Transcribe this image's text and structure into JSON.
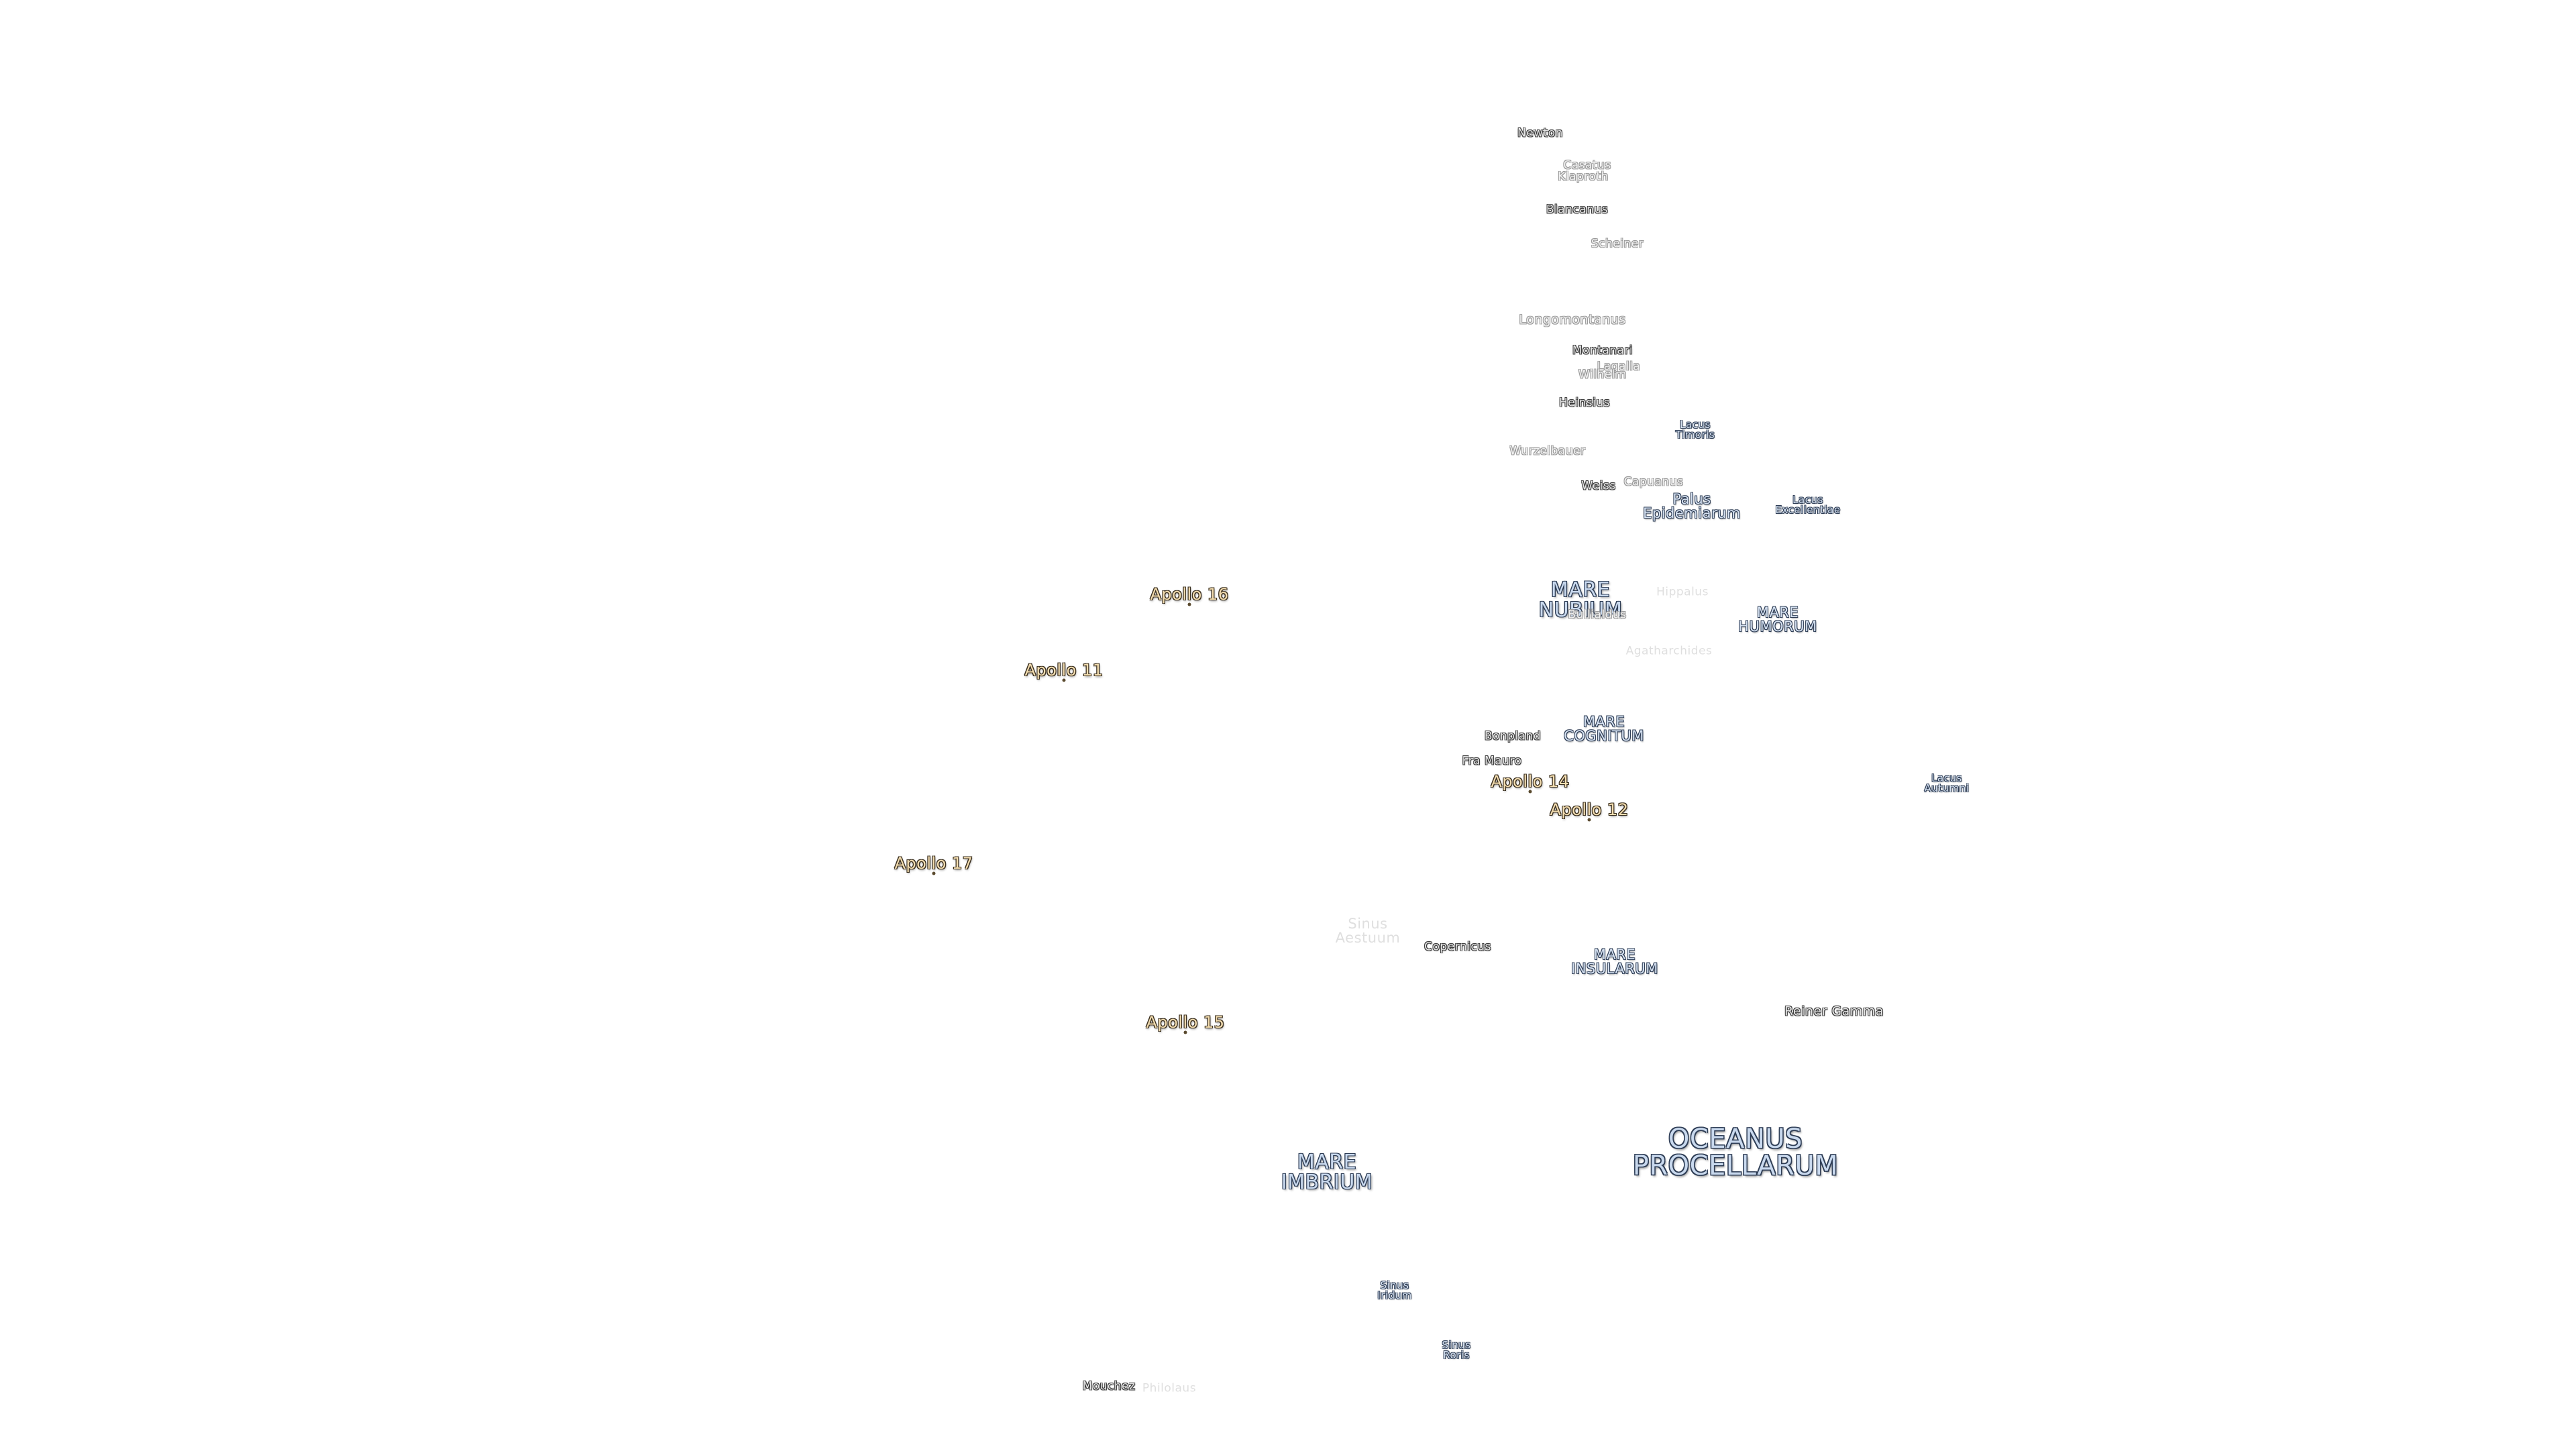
{
  "maria": [
    {
      "id": "oceanus-procellarum",
      "text": "OCEANUS\nPROCELLARUM"
    },
    {
      "id": "mare-imbrium",
      "text": "MARE\nIMBRIUM"
    },
    {
      "id": "mare-nubium",
      "text": "MARE\nNUBIUM"
    },
    {
      "id": "mare-humorum",
      "text": "MARE\nHUMORUM"
    },
    {
      "id": "mare-cognitum",
      "text": "MARE\nCOGNITUM"
    },
    {
      "id": "mare-insularum",
      "text": "MARE\nINSULARUM"
    },
    {
      "id": "palus-epidemiarum",
      "text": "Palus\nEpidemiarum"
    },
    {
      "id": "lacus-excellentiae",
      "text": "Lacus\nExcellentiae"
    },
    {
      "id": "lacus-timoris",
      "text": "Lacus\nTimoris"
    },
    {
      "id": "lacus-autumni",
      "text": "Lacus\nAutumni"
    },
    {
      "id": "sinus-iridum",
      "text": "Sinus\nIridum"
    },
    {
      "id": "sinus-roris",
      "text": "Sinus\nRoris"
    },
    {
      "id": "sinus-aestuum",
      "text": "Sinus\nAestuum"
    }
  ],
  "craters": [
    {
      "id": "newton",
      "text": "Newton"
    },
    {
      "id": "casatus",
      "text": "Casatus"
    },
    {
      "id": "klaproth",
      "text": "Klaproth"
    },
    {
      "id": "blancanus",
      "text": "Blancanus"
    },
    {
      "id": "scheiner",
      "text": "Scheiner"
    },
    {
      "id": "longomontanus",
      "text": "Longomontanus"
    },
    {
      "id": "montanari",
      "text": "Montanari"
    },
    {
      "id": "lagalla",
      "text": "Lagalla"
    },
    {
      "id": "wilhelm",
      "text": "Wilhelm"
    },
    {
      "id": "heinsius",
      "text": "Heinsius"
    },
    {
      "id": "wurzelbauer",
      "text": "Wurzelbauer"
    },
    {
      "id": "weiss",
      "text": "Weiss"
    },
    {
      "id": "capuanus",
      "text": "Capuanus"
    },
    {
      "id": "hippalus",
      "text": "Hippalus"
    },
    {
      "id": "bullialdus",
      "text": "Bullialdus"
    },
    {
      "id": "agatharchides",
      "text": "Agatharchides"
    },
    {
      "id": "bonpland",
      "text": "Bonpland"
    },
    {
      "id": "fra-mauro",
      "text": "Fra Mauro"
    },
    {
      "id": "copernicus",
      "text": "Copernicus"
    },
    {
      "id": "reiner-gamma",
      "text": "Reiner Gamma"
    },
    {
      "id": "mouchez",
      "text": "Mouchez"
    },
    {
      "id": "philolaus",
      "text": "Philolaus"
    }
  ],
  "landing_sites": [
    {
      "id": "apollo-11",
      "text": "Apollo 11"
    },
    {
      "id": "apollo-12",
      "text": "Apollo 12"
    },
    {
      "id": "apollo-14",
      "text": "Apollo 14"
    },
    {
      "id": "apollo-15",
      "text": "Apollo 15"
    },
    {
      "id": "apollo-16",
      "text": "Apollo 16"
    },
    {
      "id": "apollo-17",
      "text": "Apollo 17"
    }
  ],
  "colors": {
    "background": "#ffffff",
    "mare_fill": "#c9d9ee",
    "mare_halo": "#2e3d55",
    "crater_fill": "#e6e6e6",
    "crater_halo": "#3a3a3a",
    "apollo_fill": "#f3ddb0",
    "apollo_halo": "#3b3020"
  }
}
